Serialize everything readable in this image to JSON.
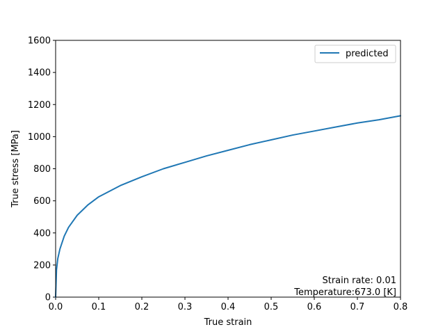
{
  "chart_data": {
    "type": "line",
    "title": "",
    "xlabel": "True strain",
    "ylabel": "True stress [MPa]",
    "xlim": [
      0.0,
      0.8
    ],
    "ylim": [
      0,
      1600
    ],
    "xticks": [
      "0.0",
      "0.1",
      "0.2",
      "0.3",
      "0.4",
      "0.5",
      "0.6",
      "0.7",
      "0.8"
    ],
    "yticks": [
      "0",
      "200",
      "400",
      "600",
      "800",
      "1000",
      "1200",
      "1400",
      "1600"
    ],
    "grid": false,
    "legend": {
      "position": "upper right",
      "entries": [
        "predicted"
      ]
    },
    "series": [
      {
        "name": "predicted",
        "color": "#1f77b4",
        "x": [
          0.0,
          0.002,
          0.005,
          0.01,
          0.02,
          0.03,
          0.05,
          0.075,
          0.1,
          0.15,
          0.2,
          0.25,
          0.3,
          0.35,
          0.4,
          0.45,
          0.5,
          0.55,
          0.6,
          0.65,
          0.7,
          0.75,
          0.8
        ],
        "y": [
          0,
          170,
          240,
          300,
          380,
          435,
          510,
          575,
          625,
          695,
          750,
          800,
          840,
          880,
          915,
          950,
          980,
          1010,
          1035,
          1060,
          1085,
          1105,
          1130
        ]
      }
    ],
    "annotations": [
      "Strain rate: 0.01",
      "Temperature:673.0 [K]"
    ]
  }
}
